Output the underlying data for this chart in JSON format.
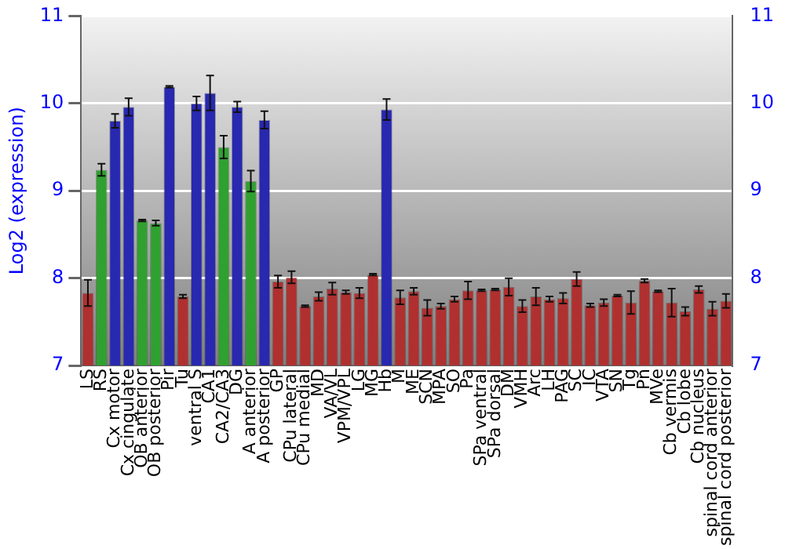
{
  "chart_data": {
    "type": "bar",
    "ylabel": "Log2 (expression)",
    "categories": [
      "LS",
      "RS",
      "Cx motor",
      "Cx cingulate",
      "OB anterior",
      "OB posterior",
      "Pir",
      "Tu",
      "ventral S",
      "CA1",
      "CA2/CA3",
      "DG",
      "A anterior",
      "A posterior",
      "GP",
      "CPu lateral",
      "CPu medial",
      "MD",
      "VA/VL",
      "VPM/VPL",
      "LG",
      "MG",
      "Hb",
      "M",
      "ME",
      "SCN",
      "MPA",
      "SO",
      "Pa",
      "SPa ventral",
      "SPa dorsal",
      "DM",
      "VMH",
      "Arc",
      "LH",
      "PAG",
      "SC",
      "IC",
      "VTA",
      "SN",
      "Tg",
      "Pn",
      "MVe",
      "Cb vermis",
      "Cb lobe",
      "Cb nucleus",
      "spinal cord anterior",
      "spinal cord posterior"
    ],
    "values": [
      7.83,
      9.24,
      9.8,
      9.96,
      8.66,
      8.63,
      10.19,
      7.79,
      10.0,
      10.12,
      9.5,
      9.96,
      9.11,
      9.81,
      7.96,
      8.01,
      7.68,
      7.79,
      7.88,
      7.84,
      7.83,
      8.04,
      9.93,
      7.78,
      7.85,
      7.66,
      7.68,
      7.76,
      7.86,
      7.86,
      7.87,
      7.9,
      7.68,
      7.79,
      7.76,
      7.77,
      7.99,
      7.69,
      7.72,
      7.8,
      7.72,
      7.97,
      7.85,
      7.72,
      7.62,
      7.87,
      7.65,
      7.74
    ],
    "errors": [
      0.15,
      0.07,
      0.08,
      0.1,
      0.01,
      0.03,
      0.01,
      0.02,
      0.08,
      0.2,
      0.13,
      0.06,
      0.12,
      0.1,
      0.07,
      0.07,
      0.01,
      0.05,
      0.07,
      0.02,
      0.06,
      0.01,
      0.12,
      0.08,
      0.04,
      0.09,
      0.03,
      0.03,
      0.1,
      0.01,
      0.01,
      0.1,
      0.07,
      0.1,
      0.03,
      0.06,
      0.08,
      0.02,
      0.04,
      0.01,
      0.13,
      0.02,
      0.01,
      0.16,
      0.05,
      0.04,
      0.08,
      0.08
    ],
    "colors": [
      "#b03030",
      "#30a030",
      "#2828b0",
      "#2828b0",
      "#30a030",
      "#30a030",
      "#2828b0",
      "#b03030",
      "#2828b0",
      "#2828b0",
      "#30a030",
      "#2828b0",
      "#30a030",
      "#2828b0",
      "#b03030",
      "#b03030",
      "#b03030",
      "#b03030",
      "#b03030",
      "#b03030",
      "#b03030",
      "#b03030",
      "#2828b0",
      "#b03030",
      "#b03030",
      "#b03030",
      "#b03030",
      "#b03030",
      "#b03030",
      "#b03030",
      "#b03030",
      "#b03030",
      "#b03030",
      "#b03030",
      "#b03030",
      "#b03030",
      "#b03030",
      "#b03030",
      "#b03030",
      "#b03030",
      "#b03030",
      "#b03030",
      "#b03030",
      "#b03030",
      "#b03030",
      "#b03030",
      "#b03030",
      "#b03030"
    ],
    "ylim": [
      7,
      11
    ],
    "yticks": [
      7,
      8,
      9,
      10,
      11
    ],
    "y2lim": [
      7,
      11
    ],
    "y2ticks": [
      7,
      8,
      9,
      10,
      11
    ],
    "grid": "y"
  }
}
